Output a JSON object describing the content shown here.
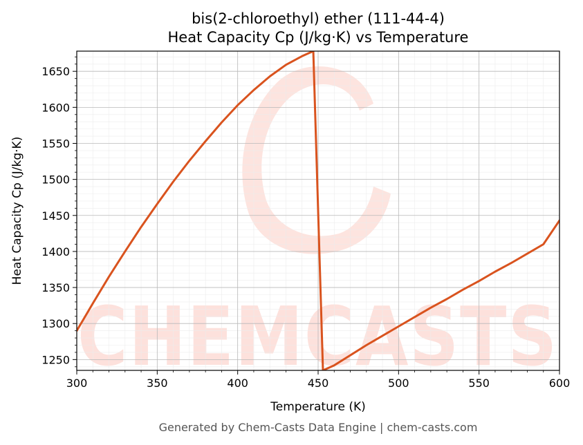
{
  "chart_data": {
    "type": "line",
    "title": "bis(2-chloroethyl) ether (111-44-4)",
    "subtitle": "Heat Capacity Cp (J/kg·K) vs Temperature",
    "xlabel": "Temperature (K)",
    "ylabel": "Heat Capacity Cp (J/kg·K)",
    "xlim": [
      300,
      600
    ],
    "ylim": [
      1235,
      1678
    ],
    "xticks": [
      300,
      350,
      400,
      450,
      500,
      550,
      600
    ],
    "yticks": [
      1250,
      1300,
      1350,
      1400,
      1450,
      1500,
      1550,
      1600,
      1650
    ],
    "grid": true,
    "series": [
      {
        "color": "#d9531e",
        "x": [
          300,
          310,
          320,
          330,
          340,
          350,
          360,
          370,
          380,
          390,
          400,
          410,
          420,
          430,
          440,
          447,
          453,
          460,
          470,
          480,
          490,
          500,
          510,
          520,
          530,
          540,
          550,
          560,
          570,
          580,
          590,
          600
        ],
        "y": [
          1290,
          1328,
          1365,
          1400,
          1434,
          1466,
          1497,
          1526,
          1553,
          1579,
          1603,
          1624,
          1643,
          1659,
          1671,
          1678,
          1235,
          1242,
          1256,
          1270,
          1283,
          1296,
          1309,
          1322,
          1334,
          1347,
          1359,
          1372,
          1384,
          1397,
          1410,
          1443
        ]
      }
    ]
  },
  "watermark": {
    "text": "CHEMCASTS",
    "color": "#fde1dc"
  },
  "footer": {
    "text": "Generated by Chem-Casts Data Engine | chem-casts.com"
  }
}
